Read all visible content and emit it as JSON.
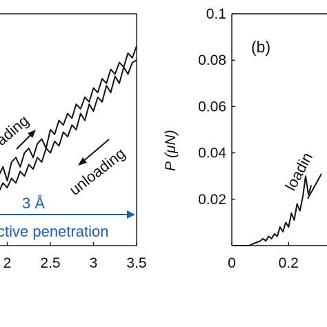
{
  "chart_data": [
    {
      "id": "a",
      "type": "line",
      "title": "",
      "xlabel": "",
      "ylabel": "",
      "xlim": [
        1.9,
        3.5
      ],
      "ylim": [
        0.0,
        0.1
      ],
      "x_ticks": [
        {
          "value": 2.0,
          "label": "2"
        },
        {
          "value": 2.5,
          "label": "2.5"
        },
        {
          "value": 3.0,
          "label": "3"
        },
        {
          "value": 3.5,
          "label": "3.5"
        }
      ],
      "panel_tag_partial": ")",
      "grid": false,
      "series": [
        {
          "x": [
            1.9,
            1.95,
            2.0,
            2.05,
            2.1,
            2.15,
            2.2,
            2.25,
            2.3,
            2.35,
            2.4,
            2.45,
            2.5,
            2.55,
            2.6,
            2.65,
            2.7,
            2.75,
            2.8,
            2.85,
            2.9,
            2.95,
            3.0,
            3.05,
            3.1,
            3.15,
            3.2,
            3.25,
            3.3,
            3.35,
            3.4,
            3.45,
            3.5
          ],
          "y": [
            0.03,
            0.034,
            0.028,
            0.036,
            0.038,
            0.034,
            0.04,
            0.042,
            0.038,
            0.044,
            0.046,
            0.042,
            0.05,
            0.048,
            0.054,
            0.052,
            0.057,
            0.055,
            0.061,
            0.059,
            0.064,
            0.062,
            0.068,
            0.066,
            0.072,
            0.07,
            0.076,
            0.074,
            0.079,
            0.077,
            0.083,
            0.081,
            0.086
          ]
        },
        {
          "x": [
            3.5,
            3.45,
            3.4,
            3.35,
            3.3,
            3.25,
            3.2,
            3.15,
            3.1,
            3.05,
            3.0,
            2.95,
            2.9,
            2.85,
            2.8,
            2.75,
            2.7,
            2.65,
            2.6,
            2.55,
            2.5,
            2.45,
            2.4,
            2.35,
            2.3,
            2.25,
            2.2,
            2.15,
            2.1,
            2.05,
            2.0,
            1.95,
            1.9
          ],
          "y": [
            0.08,
            0.079,
            0.074,
            0.077,
            0.07,
            0.073,
            0.066,
            0.069,
            0.062,
            0.064,
            0.058,
            0.061,
            0.054,
            0.057,
            0.05,
            0.052,
            0.047,
            0.049,
            0.043,
            0.045,
            0.04,
            0.042,
            0.036,
            0.038,
            0.033,
            0.035,
            0.03,
            0.032,
            0.027,
            0.029,
            0.025,
            0.027,
            0.023
          ]
        }
      ],
      "annotations": {
        "loading": "ading",
        "unloading": "unloading",
        "distance": "3 Å",
        "distance_caption": "ctive penetration"
      },
      "colors": {
        "curve": "#111111",
        "arrow_blue": "#1f5fa8"
      }
    },
    {
      "id": "b",
      "type": "line",
      "title": "",
      "xlabel": "",
      "ylabel": "P (μN)",
      "xlim": [
        0.0,
        0.35
      ],
      "ylim": [
        0.0,
        0.1
      ],
      "x_ticks": [
        {
          "value": 0.0,
          "label": "0"
        },
        {
          "value": 0.2,
          "label": "0.2"
        }
      ],
      "y_ticks": [
        {
          "value": 0.02,
          "label": "0.02"
        },
        {
          "value": 0.04,
          "label": "0.04"
        },
        {
          "value": 0.06,
          "label": "0.06"
        },
        {
          "value": 0.08,
          "label": "0.08"
        },
        {
          "value": 0.1,
          "label": "0.1"
        }
      ],
      "panel_tag": "(b)",
      "grid": false,
      "series": [
        {
          "x": [
            0.0,
            0.03,
            0.06,
            0.08,
            0.1,
            0.11,
            0.12,
            0.13,
            0.14,
            0.15,
            0.16,
            0.17,
            0.18,
            0.19,
            0.2,
            0.21,
            0.22,
            0.23,
            0.24,
            0.25,
            0.26,
            0.27,
            0.28
          ],
          "y": [
            0.0,
            0.0,
            0.0,
            0.001,
            0.002,
            0.003,
            0.002,
            0.004,
            0.003,
            0.005,
            0.004,
            0.008,
            0.006,
            0.01,
            0.008,
            0.014,
            0.011,
            0.018,
            0.015,
            0.021,
            0.03,
            0.022,
            0.026
          ]
        }
      ],
      "annotations": {
        "loading": "loadin"
      },
      "colors": {
        "curve": "#111111"
      }
    }
  ]
}
